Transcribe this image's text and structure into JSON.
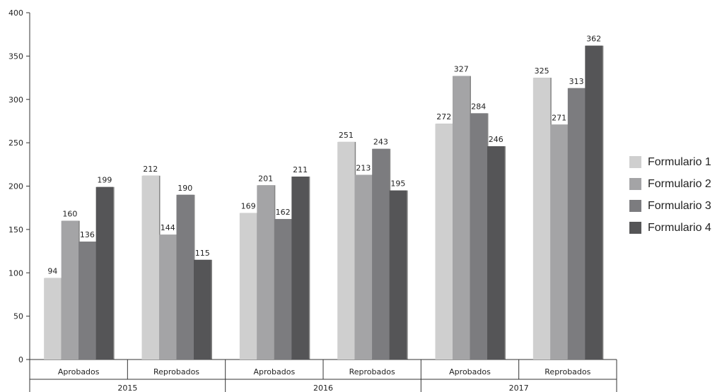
{
  "chart_data": {
    "type": "bar",
    "title": "",
    "xlabel": "",
    "ylabel": "",
    "ylim": [
      0,
      400
    ],
    "yticks": [
      0,
      50,
      100,
      150,
      200,
      250,
      300,
      350,
      400
    ],
    "grid": false,
    "legend_position": "right",
    "groups": [
      {
        "label": "2015",
        "categories": [
          "Aprobados",
          "Reprobados"
        ]
      },
      {
        "label": "2016",
        "categories": [
          "Aprobados",
          "Reprobados"
        ]
      },
      {
        "label": "2017",
        "categories": [
          "Aprobados",
          "Reprobados"
        ]
      }
    ],
    "categories": [
      "Aprobados",
      "Reprobados",
      "Aprobados",
      "Reprobados",
      "Aprobados",
      "Reprobados"
    ],
    "series": [
      {
        "name": "Formulario 1",
        "color": "#cfcfcf",
        "values": [
          94,
          212,
          169,
          251,
          272,
          325
        ]
      },
      {
        "name": "Formulario 2",
        "color": "#a4a4a6",
        "values": [
          160,
          144,
          201,
          213,
          327,
          271
        ]
      },
      {
        "name": "Formulario 3",
        "color": "#7c7c7f",
        "values": [
          136,
          190,
          162,
          243,
          284,
          313
        ]
      },
      {
        "name": "Formulario 4",
        "color": "#555557",
        "values": [
          199,
          115,
          211,
          195,
          246,
          362
        ]
      }
    ]
  }
}
